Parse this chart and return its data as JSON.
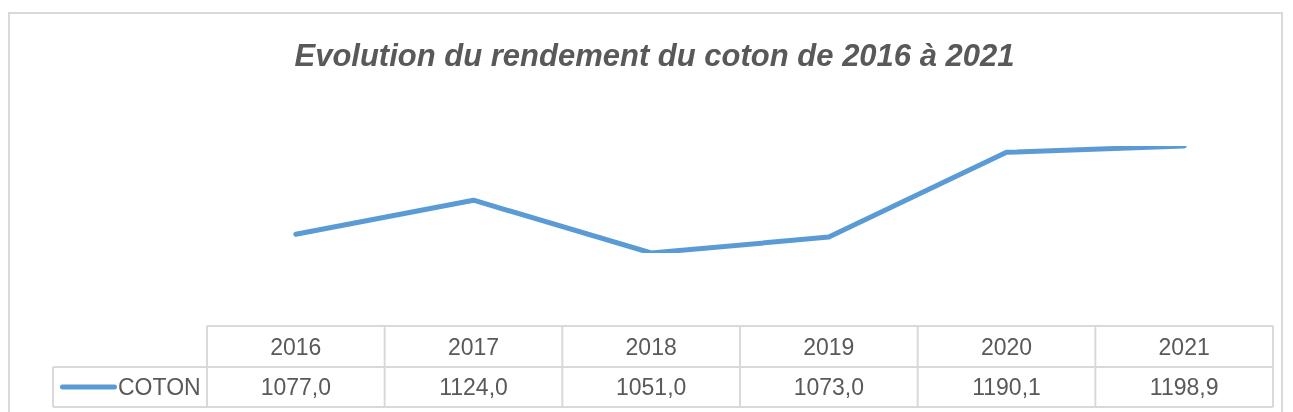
{
  "chart_data": {
    "type": "line",
    "title": "Evolution du rendement du coton de 2016 à 2021",
    "categories": [
      "2016",
      "2017",
      "2018",
      "2019",
      "2020",
      "2021"
    ],
    "series": [
      {
        "name": "COTON",
        "color": "#5b9bd5",
        "values": [
          1077.0,
          1124.0,
          1051.0,
          1073.0,
          1190.1,
          1198.9
        ],
        "value_labels": [
          "1077,0",
          "1124,0",
          "1051,0",
          "1073,0",
          "1190,1",
          "1198,9"
        ]
      }
    ],
    "tick_labels": "x",
    "legend": "bottom left",
    "marker": "none",
    "line_style": "solid"
  }
}
